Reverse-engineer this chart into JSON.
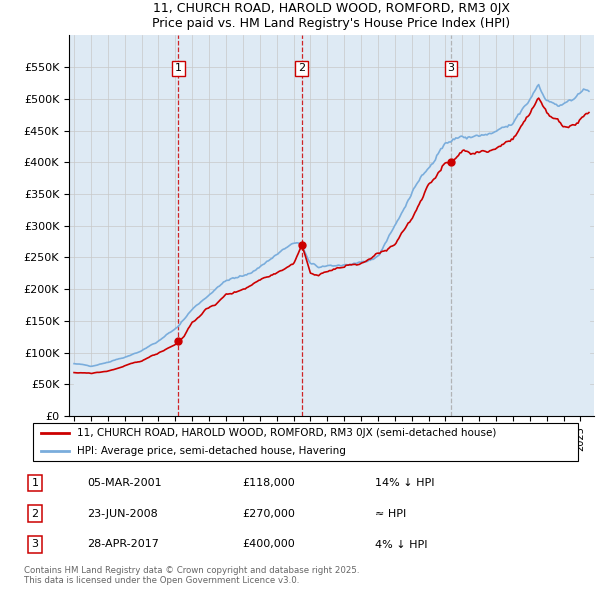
{
  "title": "11, CHURCH ROAD, HAROLD WOOD, ROMFORD, RM3 0JX",
  "subtitle": "Price paid vs. HM Land Registry's House Price Index (HPI)",
  "ylabel_ticks": [
    "£0",
    "£50K",
    "£100K",
    "£150K",
    "£200K",
    "£250K",
    "£300K",
    "£350K",
    "£400K",
    "£450K",
    "£500K",
    "£550K"
  ],
  "ytick_values": [
    0,
    50000,
    100000,
    150000,
    200000,
    250000,
    300000,
    350000,
    400000,
    450000,
    500000,
    550000
  ],
  "xlim_start": 1994.7,
  "xlim_end": 2025.8,
  "ylim_min": 0,
  "ylim_max": 600000,
  "sale_dates": [
    2001.18,
    2008.49,
    2017.33
  ],
  "sale_prices": [
    118000,
    270000,
    400000
  ],
  "sale_labels": [
    "1",
    "2",
    "3"
  ],
  "legend_line1": "11, CHURCH ROAD, HAROLD WOOD, ROMFORD, RM3 0JX (semi-detached house)",
  "legend_line2": "HPI: Average price, semi-detached house, Havering",
  "transaction_rows": [
    {
      "label": "1",
      "date": "05-MAR-2001",
      "price": "£118,000",
      "note": "14% ↓ HPI"
    },
    {
      "label": "2",
      "date": "23-JUN-2008",
      "price": "£270,000",
      "note": "≈ HPI"
    },
    {
      "label": "3",
      "date": "28-APR-2017",
      "price": "£400,000",
      "note": "4% ↓ HPI"
    }
  ],
  "footer": "Contains HM Land Registry data © Crown copyright and database right 2025.\nThis data is licensed under the Open Government Licence v3.0.",
  "red_color": "#cc0000",
  "blue_color": "#7aaddc",
  "blue_fill": "#deeaf4",
  "background_color": "#ffffff",
  "grid_color": "#c8c8c8",
  "hpi_key_points": [
    [
      1995.0,
      82000
    ],
    [
      1996.0,
      79000
    ],
    [
      1997.0,
      85000
    ],
    [
      1998.0,
      93000
    ],
    [
      1999.0,
      103000
    ],
    [
      2000.0,
      118000
    ],
    [
      2001.0,
      137000
    ],
    [
      2002.0,
      168000
    ],
    [
      2003.0,
      192000
    ],
    [
      2004.0,
      213000
    ],
    [
      2005.0,
      220000
    ],
    [
      2006.0,
      235000
    ],
    [
      2007.0,
      255000
    ],
    [
      2008.0,
      272000
    ],
    [
      2008.5,
      268000
    ],
    [
      2009.0,
      240000
    ],
    [
      2009.5,
      232000
    ],
    [
      2010.0,
      238000
    ],
    [
      2011.0,
      238000
    ],
    [
      2012.0,
      238000
    ],
    [
      2013.0,
      252000
    ],
    [
      2014.0,
      300000
    ],
    [
      2015.0,
      350000
    ],
    [
      2016.0,
      395000
    ],
    [
      2017.0,
      430000
    ],
    [
      2018.0,
      440000
    ],
    [
      2019.0,
      440000
    ],
    [
      2020.0,
      445000
    ],
    [
      2021.0,
      460000
    ],
    [
      2022.0,
      500000
    ],
    [
      2022.5,
      525000
    ],
    [
      2023.0,
      500000
    ],
    [
      2023.5,
      490000
    ],
    [
      2024.0,
      490000
    ],
    [
      2025.0,
      505000
    ],
    [
      2025.5,
      510000
    ]
  ],
  "prop_key_points": [
    [
      1995.0,
      69000
    ],
    [
      1996.0,
      67000
    ],
    [
      1997.0,
      71000
    ],
    [
      1998.0,
      78000
    ],
    [
      1999.0,
      87000
    ],
    [
      2000.0,
      100000
    ],
    [
      2001.0,
      113000
    ],
    [
      2001.18,
      118000
    ],
    [
      2001.5,
      125000
    ],
    [
      2002.0,
      148000
    ],
    [
      2003.0,
      170000
    ],
    [
      2004.0,
      190000
    ],
    [
      2005.0,
      200000
    ],
    [
      2006.0,
      215000
    ],
    [
      2007.0,
      228000
    ],
    [
      2008.0,
      240000
    ],
    [
      2008.49,
      270000
    ],
    [
      2009.0,
      225000
    ],
    [
      2009.5,
      220000
    ],
    [
      2010.0,
      230000
    ],
    [
      2011.0,
      235000
    ],
    [
      2012.0,
      240000
    ],
    [
      2013.0,
      255000
    ],
    [
      2014.0,
      268000
    ],
    [
      2015.0,
      310000
    ],
    [
      2016.0,
      368000
    ],
    [
      2017.0,
      395000
    ],
    [
      2017.33,
      400000
    ],
    [
      2018.0,
      420000
    ],
    [
      2019.0,
      415000
    ],
    [
      2020.0,
      420000
    ],
    [
      2021.0,
      440000
    ],
    [
      2022.0,
      475000
    ],
    [
      2022.5,
      505000
    ],
    [
      2023.0,
      480000
    ],
    [
      2023.5,
      468000
    ],
    [
      2024.0,
      455000
    ],
    [
      2025.0,
      470000
    ],
    [
      2025.5,
      475000
    ]
  ]
}
